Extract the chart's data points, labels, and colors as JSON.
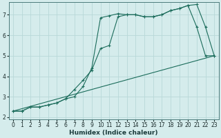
{
  "xlabel": "Humidex (Indice chaleur)",
  "background_color": "#d5ecec",
  "grid_color": "#b8d8d8",
  "line_color": "#1a6b5a",
  "xlim": [
    -0.5,
    23.5
  ],
  "ylim": [
    1.9,
    7.6
  ],
  "yticks": [
    2,
    3,
    4,
    5,
    6,
    7
  ],
  "xticks": [
    0,
    1,
    2,
    3,
    4,
    5,
    6,
    7,
    8,
    9,
    10,
    11,
    12,
    13,
    14,
    15,
    16,
    17,
    18,
    19,
    20,
    21,
    22,
    23
  ],
  "series1_x": [
    0,
    1,
    2,
    3,
    4,
    5,
    6,
    7,
    8,
    9,
    10,
    11,
    12,
    13,
    14,
    15,
    16,
    17,
    18,
    19,
    20,
    21,
    22,
    23
  ],
  "series1_y": [
    2.3,
    2.3,
    2.5,
    2.5,
    2.6,
    2.7,
    2.9,
    3.0,
    3.5,
    4.4,
    6.85,
    6.95,
    7.05,
    7.0,
    7.0,
    6.9,
    6.9,
    7.0,
    7.2,
    7.3,
    7.45,
    6.4,
    5.0,
    5.0
  ],
  "series2_x": [
    0,
    1,
    2,
    3,
    4,
    5,
    6,
    7,
    8,
    9,
    10,
    11,
    12,
    13,
    14,
    15,
    16,
    17,
    18,
    19,
    20,
    21,
    22,
    23
  ],
  "series2_y": [
    2.3,
    2.3,
    2.5,
    2.5,
    2.6,
    2.7,
    2.9,
    3.35,
    3.8,
    4.3,
    5.35,
    5.5,
    6.9,
    7.0,
    7.0,
    6.9,
    6.9,
    7.0,
    7.2,
    7.3,
    7.45,
    7.5,
    6.4,
    5.0
  ],
  "series3_x": [
    0,
    23
  ],
  "series3_y": [
    2.3,
    5.0
  ]
}
